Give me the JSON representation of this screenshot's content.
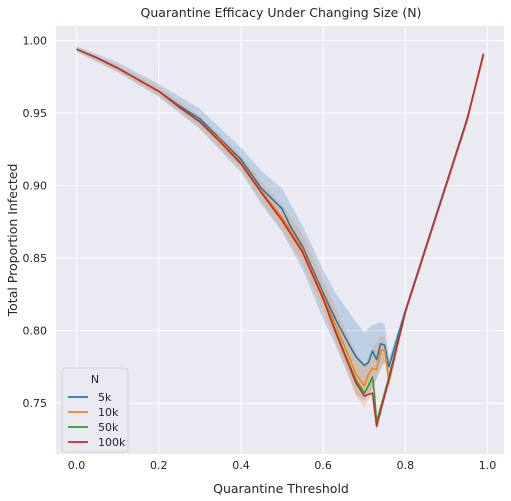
{
  "chart_data": {
    "type": "line",
    "title": "Quarantine Efficacy Under Changing Size (N)",
    "xlabel": "Quarantine Threshold",
    "ylabel": "Total Proportion Infected",
    "xlim": [
      -0.05,
      1.04
    ],
    "ylim": [
      0.715,
      1.01
    ],
    "xticks": [
      0.0,
      0.2,
      0.4,
      0.6,
      0.8,
      1.0
    ],
    "xtick_labels": [
      "0.0",
      "0.2",
      "0.4",
      "0.6",
      "0.8",
      "1.0"
    ],
    "yticks": [
      0.75,
      0.8,
      0.85,
      0.9,
      0.95,
      1.0
    ],
    "ytick_labels": [
      "0.75",
      "0.80",
      "0.85",
      "0.90",
      "0.95",
      "1.00"
    ],
    "grid": true,
    "background": "#eaeaf2",
    "legend": {
      "title": "N",
      "placement": "lower-left"
    },
    "series": [
      {
        "name": "5k",
        "color": "#1f77b4",
        "x": [
          0.0,
          0.05,
          0.1,
          0.15,
          0.2,
          0.25,
          0.3,
          0.35,
          0.4,
          0.45,
          0.5,
          0.52,
          0.55,
          0.6,
          0.63,
          0.66,
          0.68,
          0.7,
          0.71,
          0.72,
          0.73,
          0.74,
          0.75,
          0.76,
          0.8,
          0.85,
          0.9,
          0.95,
          0.99
        ],
        "y": [
          0.994,
          0.988,
          0.981,
          0.973,
          0.965,
          0.955,
          0.946,
          0.932,
          0.918,
          0.898,
          0.884,
          0.872,
          0.858,
          0.826,
          0.808,
          0.792,
          0.782,
          0.776,
          0.778,
          0.786,
          0.78,
          0.791,
          0.79,
          0.775,
          0.814,
          0.858,
          0.902,
          0.946,
          0.99
        ]
      },
      {
        "name": "10k",
        "color": "#ff7f0e",
        "x": [
          0.0,
          0.05,
          0.1,
          0.15,
          0.2,
          0.25,
          0.3,
          0.35,
          0.4,
          0.45,
          0.5,
          0.55,
          0.6,
          0.63,
          0.66,
          0.68,
          0.7,
          0.71,
          0.72,
          0.73,
          0.74,
          0.75,
          0.76,
          0.8,
          0.85,
          0.9,
          0.95,
          0.99
        ],
        "y": [
          0.994,
          0.988,
          0.981,
          0.973,
          0.965,
          0.954,
          0.944,
          0.931,
          0.916,
          0.896,
          0.878,
          0.856,
          0.824,
          0.804,
          0.784,
          0.77,
          0.762,
          0.77,
          0.774,
          0.773,
          0.786,
          0.787,
          0.765,
          0.813,
          0.857,
          0.901,
          0.945,
          0.99
        ]
      },
      {
        "name": "50k",
        "color": "#2ca02c",
        "x": [
          0.0,
          0.05,
          0.1,
          0.15,
          0.2,
          0.25,
          0.3,
          0.35,
          0.4,
          0.45,
          0.5,
          0.55,
          0.6,
          0.63,
          0.66,
          0.68,
          0.7,
          0.71,
          0.72,
          0.725,
          0.73,
          0.76,
          0.8,
          0.85,
          0.9,
          0.95,
          0.99
        ],
        "y": [
          0.994,
          0.988,
          0.981,
          0.973,
          0.965,
          0.954,
          0.944,
          0.93,
          0.915,
          0.895,
          0.876,
          0.854,
          0.822,
          0.8,
          0.779,
          0.766,
          0.757,
          0.762,
          0.768,
          0.756,
          0.737,
          0.768,
          0.813,
          0.857,
          0.901,
          0.945,
          0.99
        ]
      },
      {
        "name": "100k",
        "color": "#d62728",
        "x": [
          0.0,
          0.05,
          0.1,
          0.15,
          0.2,
          0.25,
          0.3,
          0.35,
          0.4,
          0.45,
          0.5,
          0.55,
          0.6,
          0.63,
          0.66,
          0.68,
          0.7,
          0.71,
          0.72,
          0.73,
          0.76,
          0.8,
          0.85,
          0.9,
          0.95,
          0.99
        ],
        "y": [
          0.994,
          0.988,
          0.981,
          0.973,
          0.965,
          0.954,
          0.944,
          0.93,
          0.915,
          0.895,
          0.876,
          0.854,
          0.822,
          0.799,
          0.778,
          0.764,
          0.755,
          0.756,
          0.757,
          0.734,
          0.766,
          0.813,
          0.857,
          0.901,
          0.945,
          0.991
        ]
      }
    ],
    "confidence_bands": [
      {
        "series": "5k",
        "color": "#1f77b4",
        "x": [
          0.0,
          0.1,
          0.2,
          0.3,
          0.4,
          0.45,
          0.5,
          0.55,
          0.6,
          0.63,
          0.66,
          0.68,
          0.7,
          0.72,
          0.74,
          0.75,
          0.76,
          0.8
        ],
        "low": [
          0.992,
          0.978,
          0.961,
          0.939,
          0.909,
          0.887,
          0.868,
          0.842,
          0.808,
          0.79,
          0.77,
          0.756,
          0.752,
          0.76,
          0.773,
          0.778,
          0.77,
          0.812
        ],
        "high": [
          0.996,
          0.985,
          0.97,
          0.953,
          0.926,
          0.91,
          0.898,
          0.872,
          0.842,
          0.826,
          0.814,
          0.806,
          0.799,
          0.804,
          0.806,
          0.804,
          0.781,
          0.816
        ]
      },
      {
        "series": "10k",
        "color": "#ff7f0e",
        "x": [
          0.0,
          0.1,
          0.2,
          0.3,
          0.4,
          0.45,
          0.5,
          0.55,
          0.6,
          0.63,
          0.66,
          0.68,
          0.7,
          0.72,
          0.74,
          0.75,
          0.76,
          0.8
        ],
        "low": [
          0.993,
          0.979,
          0.962,
          0.94,
          0.911,
          0.889,
          0.869,
          0.846,
          0.813,
          0.792,
          0.771,
          0.755,
          0.747,
          0.759,
          0.776,
          0.778,
          0.761,
          0.812
        ],
        "high": [
          0.995,
          0.983,
          0.968,
          0.948,
          0.921,
          0.903,
          0.887,
          0.866,
          0.835,
          0.816,
          0.797,
          0.785,
          0.777,
          0.788,
          0.796,
          0.796,
          0.77,
          0.814
        ]
      }
    ]
  }
}
